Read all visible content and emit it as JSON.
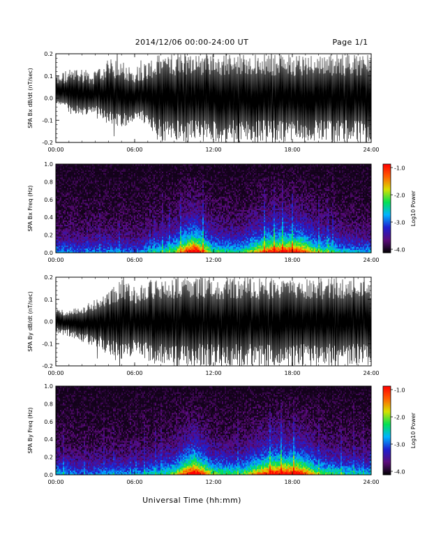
{
  "header": {
    "title": "2014/12/06  00:00-24:00 UT",
    "page": "Page 1/1"
  },
  "footer": {
    "xlabel": "Universal Time (hh:mm)"
  },
  "colors": {
    "trace": "#000000",
    "background": "#ffffff",
    "colormap": [
      "#000000",
      "#5a0a7a",
      "#1e1ed0",
      "#00b4ff",
      "#00e050",
      "#d8e000",
      "#ff6000",
      "#ff0000"
    ]
  },
  "chart_data": [
    {
      "type": "line",
      "ylabel": "SPA Bx dB/dt (nT/sec)",
      "x_ticks": [
        "00:00",
        "06:00",
        "12:00",
        "18:00",
        "24:00"
      ],
      "xlim": [
        0,
        24
      ],
      "x_unit": "hours UT",
      "ylim": [
        -0.2,
        0.2
      ],
      "y_ticks": [
        "0.2",
        "0.1",
        "0.0",
        "-0.1",
        "-0.2"
      ],
      "x": [
        0,
        1,
        2,
        3,
        4,
        5,
        6,
        7,
        8,
        9,
        10,
        11,
        12,
        13,
        14,
        15,
        16,
        17,
        18,
        19,
        20,
        21,
        22,
        23,
        24
      ],
      "envelope_upper": [
        0.11,
        0.13,
        0.14,
        0.12,
        0.18,
        0.16,
        0.14,
        0.17,
        0.2,
        0.2,
        0.2,
        0.2,
        0.2,
        0.2,
        0.2,
        0.2,
        0.2,
        0.2,
        0.2,
        0.2,
        0.2,
        0.2,
        0.2,
        0.2,
        0.2
      ],
      "envelope_lower": [
        -0.02,
        -0.05,
        -0.08,
        -0.06,
        -0.12,
        -0.14,
        -0.1,
        -0.12,
        -0.2,
        -0.2,
        -0.2,
        -0.2,
        -0.2,
        -0.2,
        -0.2,
        -0.2,
        -0.2,
        -0.2,
        -0.2,
        -0.2,
        -0.2,
        -0.2,
        -0.2,
        -0.2,
        -0.2
      ]
    },
    {
      "type": "heatmap",
      "ylabel": "SPA Bx Freq (Hz)",
      "colorbar_label": "Log10 Power",
      "colorbar_ticks": [
        "-1.0",
        "-2.0",
        "-3.0",
        "-4.0"
      ],
      "clim": [
        -4.0,
        -1.0
      ],
      "x_ticks": [
        "00:00",
        "06:00",
        "12:00",
        "18:00",
        "24:00"
      ],
      "xlim": [
        0,
        24
      ],
      "ylim": [
        0.0,
        1.0
      ],
      "y_ticks": [
        "1.0",
        "0.8",
        "0.6",
        "0.4",
        "0.2",
        "0.0"
      ],
      "activity_hours": [
        0,
        2,
        4,
        6,
        8,
        9,
        10.5,
        12,
        14,
        15.5,
        16.5,
        18.5,
        20,
        22,
        24
      ],
      "activity_level": [
        0.35,
        0.3,
        0.35,
        0.3,
        0.45,
        0.55,
        1.0,
        0.5,
        0.45,
        0.7,
        0.85,
        0.85,
        0.55,
        0.4,
        0.35
      ]
    },
    {
      "type": "line",
      "ylabel": "SPA By dB/dt (nT/sec)",
      "x_ticks": [
        "00:00",
        "06:00",
        "12:00",
        "18:00",
        "24:00"
      ],
      "xlim": [
        0,
        24
      ],
      "x_unit": "hours UT",
      "ylim": [
        -0.2,
        0.2
      ],
      "y_ticks": [
        "0.2",
        "0.1",
        "0.0",
        "-0.1",
        "-0.2"
      ],
      "x": [
        0,
        1,
        2,
        3,
        4,
        5,
        6,
        7,
        8,
        9,
        10,
        11,
        12,
        13,
        14,
        15,
        16,
        17,
        18,
        19,
        20,
        21,
        22,
        23,
        24
      ],
      "envelope_upper": [
        0.06,
        0.05,
        0.07,
        0.1,
        0.13,
        0.2,
        0.16,
        0.18,
        0.2,
        0.2,
        0.2,
        0.2,
        0.2,
        0.2,
        0.2,
        0.2,
        0.2,
        0.2,
        0.2,
        0.2,
        0.2,
        0.2,
        0.2,
        0.2,
        0.2
      ],
      "envelope_lower": [
        -0.05,
        -0.07,
        -0.1,
        -0.12,
        -0.15,
        -0.2,
        -0.14,
        -0.18,
        -0.2,
        -0.2,
        -0.2,
        -0.2,
        -0.2,
        -0.2,
        -0.2,
        -0.2,
        -0.2,
        -0.2,
        -0.2,
        -0.2,
        -0.2,
        -0.2,
        -0.2,
        -0.2,
        -0.2
      ]
    },
    {
      "type": "heatmap",
      "ylabel": "SPA By Freq (Hz)",
      "colorbar_label": "Log10 Power",
      "colorbar_ticks": [
        "-1.0",
        "-2.0",
        "-3.0",
        "-4.0"
      ],
      "clim": [
        -4.0,
        -1.0
      ],
      "x_ticks": [
        "00:00",
        "06:00",
        "12:00",
        "18:00",
        "24:00"
      ],
      "xlim": [
        0,
        24
      ],
      "ylim": [
        0.0,
        1.0
      ],
      "y_ticks": [
        "1.0",
        "0.8",
        "0.6",
        "0.4",
        "0.2",
        "0.0"
      ],
      "activity_hours": [
        0,
        2,
        4,
        6,
        8,
        9,
        10.5,
        12,
        14,
        15.5,
        16.5,
        18.5,
        20,
        22,
        24
      ],
      "activity_level": [
        0.4,
        0.3,
        0.35,
        0.35,
        0.45,
        0.55,
        1.0,
        0.55,
        0.5,
        0.75,
        0.9,
        0.9,
        0.55,
        0.45,
        0.4
      ]
    }
  ]
}
